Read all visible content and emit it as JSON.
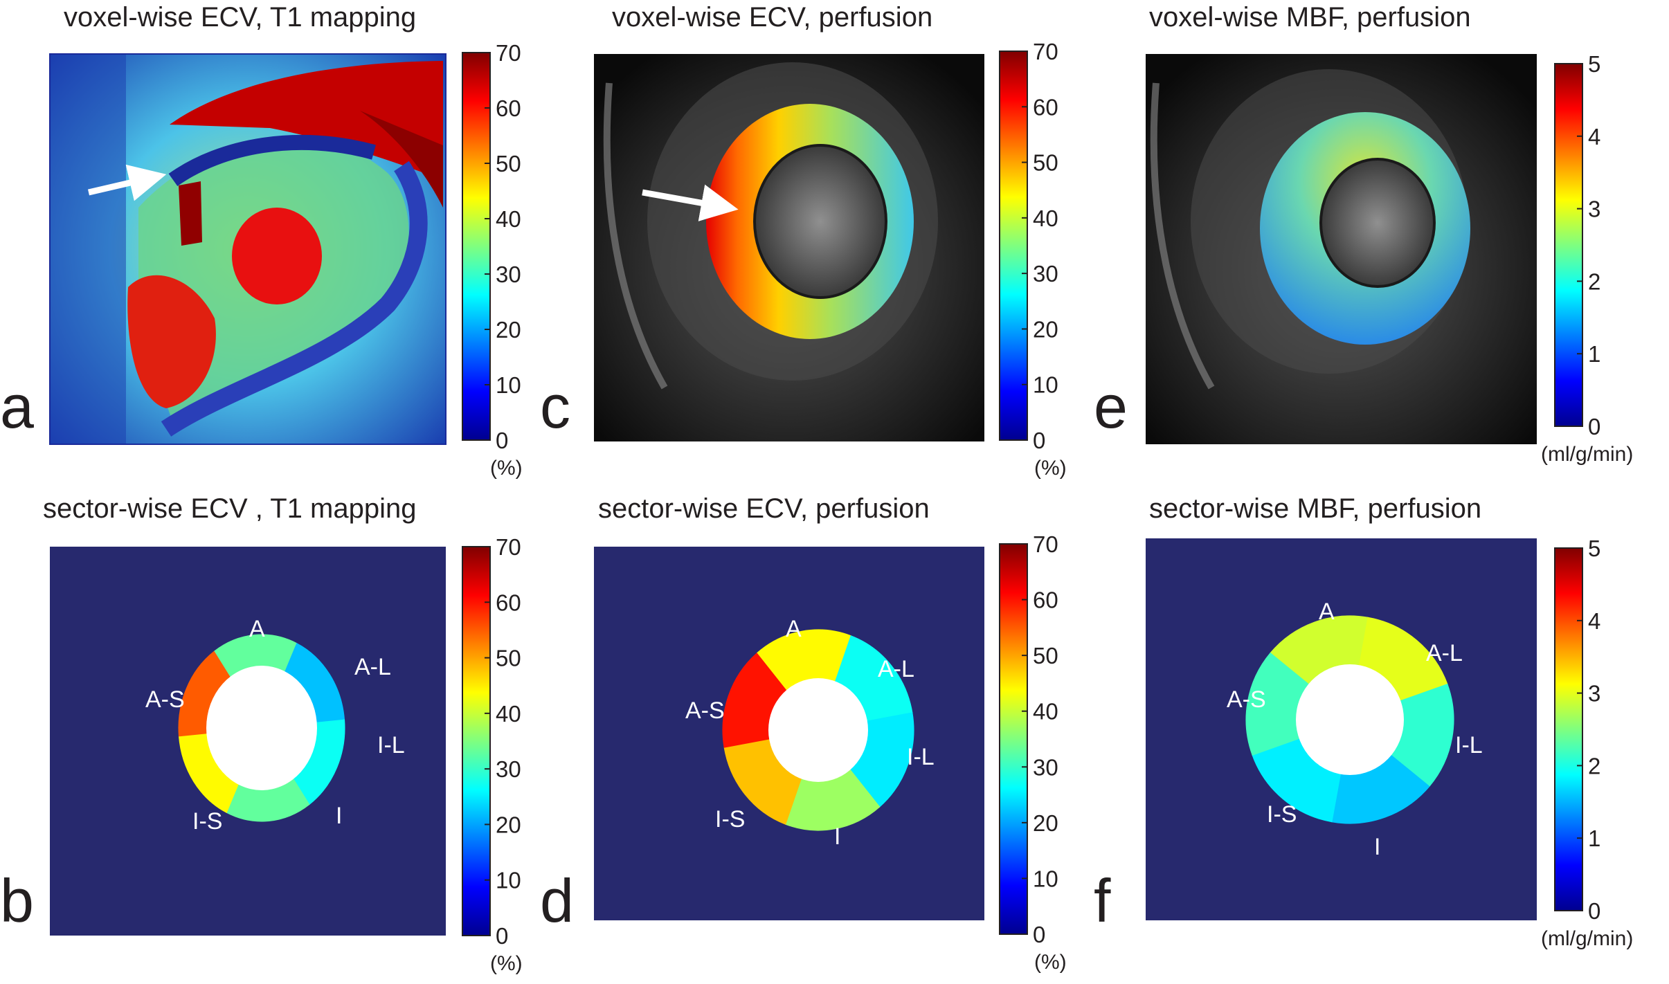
{
  "panels": {
    "a": {
      "letter": "a",
      "title": "voxel-wise ECV, T1 mapping"
    },
    "c": {
      "letter": "c",
      "title": "voxel-wise ECV, perfusion"
    },
    "e": {
      "letter": "e",
      "title": "voxel-wise MBF, perfusion"
    },
    "b": {
      "letter": "b",
      "title": "sector-wise ECV , T1 mapping"
    },
    "d": {
      "letter": "d",
      "title": "sector-wise ECV, perfusion"
    },
    "f": {
      "letter": "f",
      "title": "sector-wise MBF, perfusion"
    }
  },
  "colorbars": {
    "ecv": {
      "min": 0,
      "max": 70,
      "ticks": [
        "70",
        "60",
        "50",
        "40",
        "30",
        "20",
        "10",
        "0"
      ],
      "unit": "(%)"
    },
    "mbf": {
      "min": 0,
      "max": 5,
      "ticks": [
        "5",
        "4",
        "3",
        "2",
        "1",
        "0"
      ],
      "unit": "(ml/g/min)"
    }
  },
  "sector_labels": [
    "A",
    "A-L",
    "I-L",
    "I",
    "I-S",
    "A-S"
  ],
  "chart_data": [
    {
      "type": "heatmap",
      "panel": "b",
      "title": "sector-wise ECV , T1 mapping",
      "unit": "%",
      "sectors": [
        {
          "name": "A",
          "value": 33
        },
        {
          "name": "A-L",
          "value": 22
        },
        {
          "name": "I-L",
          "value": 27
        },
        {
          "name": "I",
          "value": 33
        },
        {
          "name": "I-S",
          "value": 44
        },
        {
          "name": "A-S",
          "value": 55
        }
      ]
    },
    {
      "type": "heatmap",
      "panel": "d",
      "title": "sector-wise ECV, perfusion",
      "unit": "%",
      "sectors": [
        {
          "name": "A",
          "value": 44
        },
        {
          "name": "A-L",
          "value": 27
        },
        {
          "name": "I-L",
          "value": 25
        },
        {
          "name": "I",
          "value": 37
        },
        {
          "name": "I-S",
          "value": 48
        },
        {
          "name": "A-S",
          "value": 60
        }
      ]
    },
    {
      "type": "heatmap",
      "panel": "f",
      "title": "sector-wise MBF, perfusion",
      "unit": "ml/g/min",
      "sectors": [
        {
          "name": "A",
          "value": 2.9
        },
        {
          "name": "A-L",
          "value": 3.0
        },
        {
          "name": "I-L",
          "value": 2.1
        },
        {
          "name": "I",
          "value": 1.6
        },
        {
          "name": "I-S",
          "value": 1.8
        },
        {
          "name": "A-S",
          "value": 2.2
        }
      ]
    }
  ]
}
